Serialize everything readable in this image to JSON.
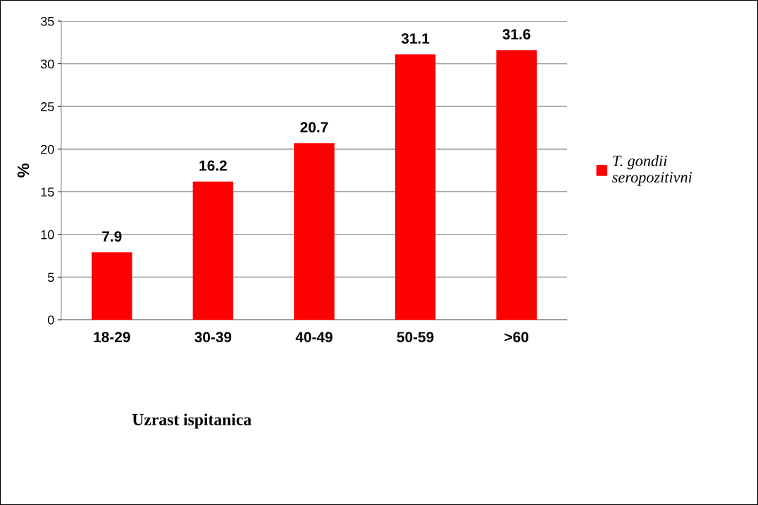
{
  "chart_data": {
    "type": "bar",
    "xlabel": "Uzrast ispitanica",
    "ylabel": "%",
    "categories": [
      "18-29",
      "30-39",
      "40-49",
      "50-59",
      ">60"
    ],
    "series": [
      {
        "name": "T. gondii seropozitivni",
        "color": "#ff0000",
        "values": [
          7.9,
          16.2,
          20.7,
          31.1,
          31.6
        ]
      }
    ],
    "ylim": [
      0,
      35
    ],
    "yticks": [
      0,
      5,
      10,
      15,
      20,
      25,
      30,
      35
    ],
    "grid": "y",
    "legend": "right",
    "data_labels": true
  }
}
